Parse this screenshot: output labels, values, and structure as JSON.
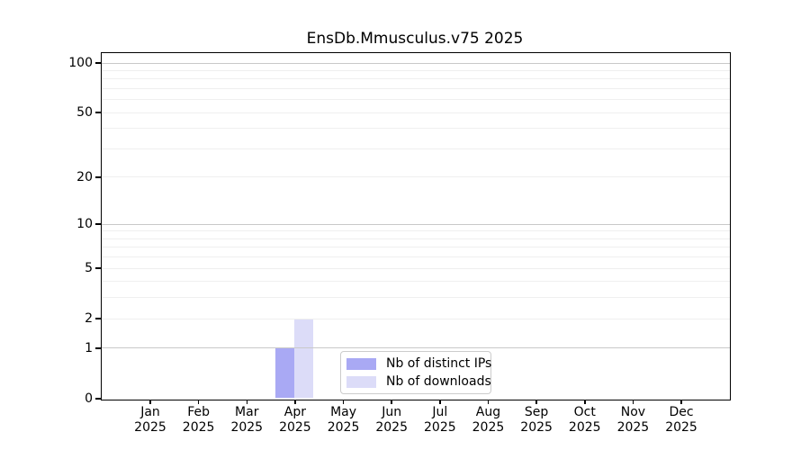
{
  "chart_data": {
    "type": "bar",
    "title": "EnsDb.Mmusculus.v75 2025",
    "xlabel": "",
    "ylabel": "",
    "categories": [
      "Jan",
      "Feb",
      "Mar",
      "Apr",
      "May",
      "Jun",
      "Jul",
      "Aug",
      "Sep",
      "Oct",
      "Nov",
      "Dec"
    ],
    "year_label": "2025",
    "series": [
      {
        "name": "Nb of distinct IPs",
        "color": "#a9a9f4",
        "values": [
          0,
          0,
          0,
          1,
          0,
          0,
          0,
          0,
          0,
          0,
          0,
          0
        ]
      },
      {
        "name": "Nb of downloads",
        "color": "#dcdcf8",
        "values": [
          0,
          0,
          0,
          2,
          0,
          0,
          0,
          0,
          0,
          0,
          0,
          0
        ]
      }
    ],
    "yscale": "log1p",
    "yticks": [
      0,
      1,
      2,
      5,
      10,
      20,
      50,
      100
    ],
    "ylim": [
      0,
      113
    ],
    "grid": {
      "on": true,
      "major_values": [
        1,
        10,
        100
      ],
      "minor_values": [
        2,
        3,
        4,
        5,
        6,
        7,
        8,
        9,
        20,
        30,
        40,
        50,
        60,
        70,
        80,
        90
      ],
      "major_color": "#c9c9c9",
      "minor_color": "#efefef"
    },
    "legend": {
      "position": "lower center-right inside plot",
      "border_color": "#cccccc"
    },
    "colors": {
      "spine": "#000000",
      "background": "#ffffff"
    }
  }
}
